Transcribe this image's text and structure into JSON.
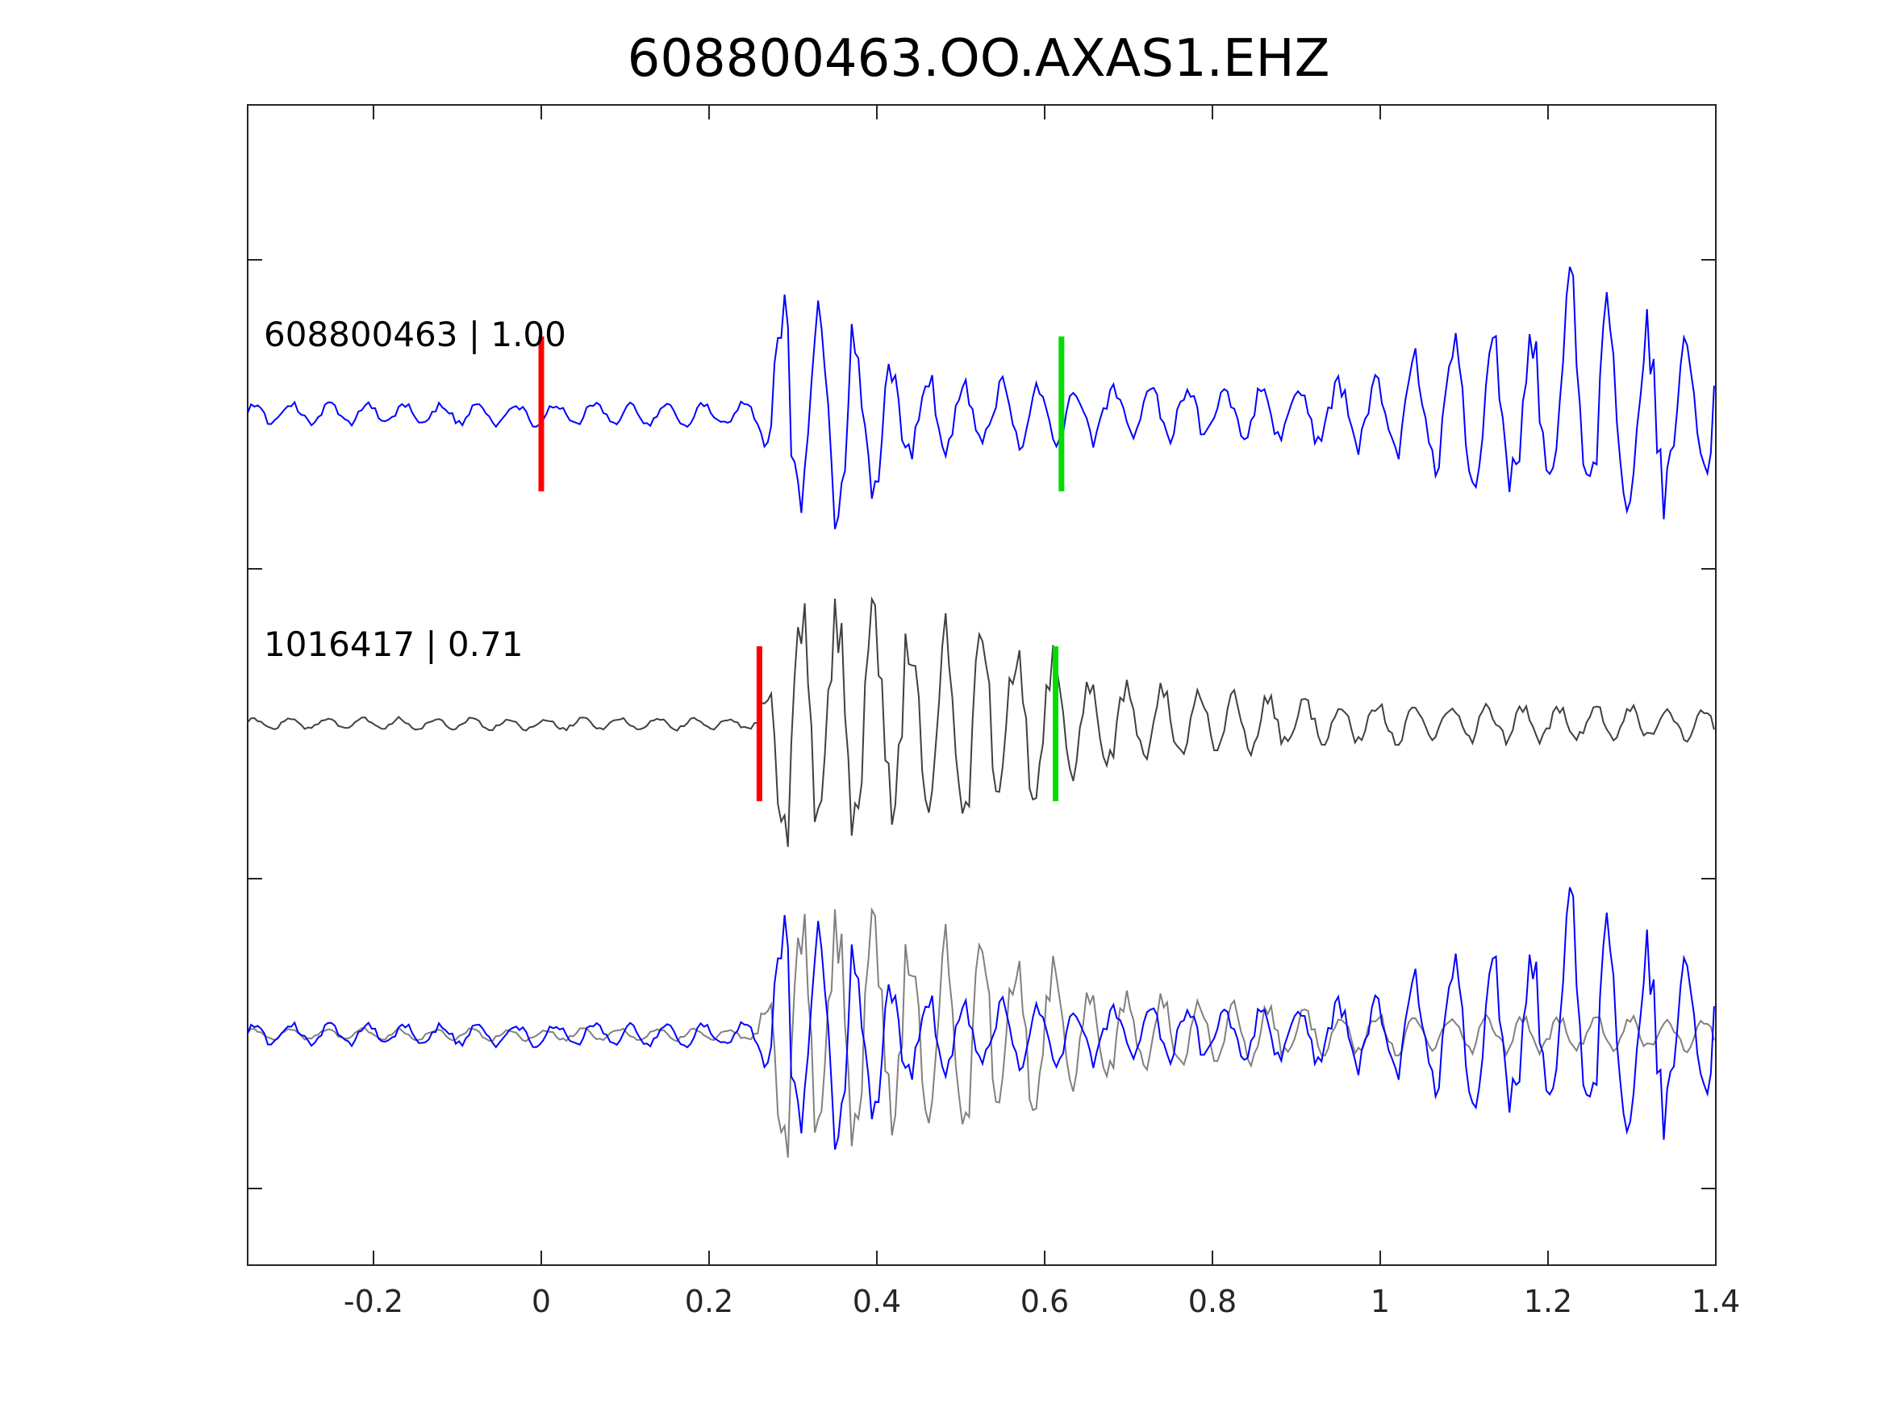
{
  "chart_data": {
    "type": "line",
    "title": "608800463.OO.AXAS1.EHZ",
    "xlabel": "",
    "ylabel": "",
    "xlim": [
      -0.35,
      1.4
    ],
    "x_ticks": [
      {
        "value": -0.2,
        "label": "-0.2"
      },
      {
        "value": 0,
        "label": "0"
      },
      {
        "value": 0.2,
        "label": "0.2"
      },
      {
        "value": 0.4,
        "label": "0.4"
      },
      {
        "value": 0.6,
        "label": "0.6"
      },
      {
        "value": 0.8,
        "label": "0.8"
      },
      {
        "value": 1,
        "label": "1"
      },
      {
        "value": 1.2,
        "label": "1.2"
      },
      {
        "value": 1.4,
        "label": "1.4"
      }
    ],
    "grid": false,
    "legend": "none",
    "colors": {
      "target": "#0000ff",
      "template": "#404040",
      "template_overlay": "#808080",
      "pick_p": "#ff0000",
      "pick_s": "#00dd00",
      "axis": "#262626"
    },
    "traces": [
      {
        "label": "608800463 | 1.00",
        "id": "608800463",
        "coefficient": "1.00",
        "color": "#0000ff",
        "p_pick": 0.0,
        "s_pick": 0.62,
        "envelope": [
          {
            "t": -0.35,
            "a": 0.08
          },
          {
            "t": 0.26,
            "a": 0.08
          },
          {
            "t": 0.28,
            "a": 0.9
          },
          {
            "t": 0.32,
            "a": 0.75
          },
          {
            "t": 0.38,
            "a": 0.7
          },
          {
            "t": 0.42,
            "a": 0.35
          },
          {
            "t": 0.5,
            "a": 0.22
          },
          {
            "t": 0.6,
            "a": 0.22
          },
          {
            "t": 0.7,
            "a": 0.18
          },
          {
            "t": 0.85,
            "a": 0.18
          },
          {
            "t": 1.0,
            "a": 0.25
          },
          {
            "t": 1.05,
            "a": 0.45
          },
          {
            "t": 1.2,
            "a": 0.55
          },
          {
            "t": 1.22,
            "a": 0.9
          },
          {
            "t": 1.3,
            "a": 0.65
          },
          {
            "t": 1.4,
            "a": 0.6
          }
        ]
      },
      {
        "label": "1016417 | 0.71",
        "id": "1016417",
        "coefficient": "0.71",
        "color": "#404040",
        "p_pick": 0.26,
        "s_pick": 0.613,
        "envelope": [
          {
            "t": -0.35,
            "a": 0.04
          },
          {
            "t": 0.25,
            "a": 0.04
          },
          {
            "t": 0.27,
            "a": 0.25
          },
          {
            "t": 0.29,
            "a": 0.9
          },
          {
            "t": 0.31,
            "a": 0.95
          },
          {
            "t": 0.4,
            "a": 0.75
          },
          {
            "t": 0.5,
            "a": 0.68
          },
          {
            "t": 0.6,
            "a": 0.5
          },
          {
            "t": 0.65,
            "a": 0.3
          },
          {
            "t": 0.8,
            "a": 0.22
          },
          {
            "t": 0.95,
            "a": 0.14
          },
          {
            "t": 1.4,
            "a": 0.11
          }
        ]
      }
    ]
  }
}
